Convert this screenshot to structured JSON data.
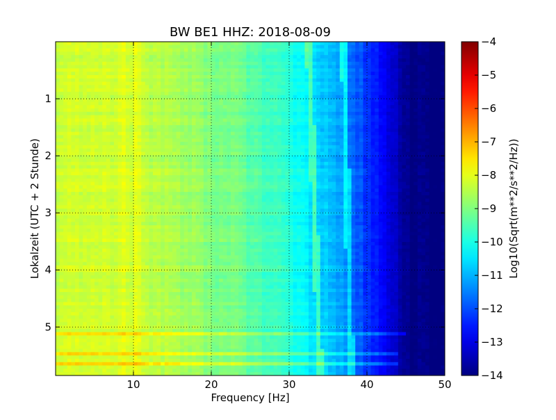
{
  "chart_data": {
    "type": "heatmap",
    "title": "BW BE1 HHZ: 2018-08-09",
    "xlabel": "Frequency [Hz]",
    "ylabel": "Lokalzeit (UTC + 2 Stunde)",
    "colorbar_label": "Log10(Sqrt(m**2/s**2/Hz))",
    "xlim": [
      0,
      50
    ],
    "ylim": [
      5.85,
      0
    ],
    "x_ticks": [
      10,
      20,
      30,
      40,
      50
    ],
    "y_ticks": [
      1,
      2,
      3,
      4,
      5
    ],
    "colorbar_range": [
      -14,
      -4
    ],
    "colorbar_ticks": [
      -4,
      -5,
      -6,
      -7,
      -8,
      -9,
      -10,
      -11,
      -12,
      -13,
      -14
    ],
    "colormap": "jet",
    "grid": true,
    "frequency_profile": [
      {
        "hz": 0,
        "value": -8.3
      },
      {
        "hz": 5,
        "value": -8.2
      },
      {
        "hz": 10,
        "value": -8.1
      },
      {
        "hz": 15,
        "value": -8.6
      },
      {
        "hz": 20,
        "value": -8.9
      },
      {
        "hz": 25,
        "value": -9.3
      },
      {
        "hz": 30,
        "value": -9.9
      },
      {
        "hz": 33,
        "value": -10.5
      },
      {
        "hz": 36,
        "value": -11.0
      },
      {
        "hz": 40,
        "value": -12.2
      },
      {
        "hz": 43,
        "value": -13.0
      },
      {
        "hz": 45,
        "value": -13.9
      },
      {
        "hz": 50,
        "value": -14.0
      }
    ],
    "annotations": [
      {
        "type": "spectral-line",
        "hz_start": 37.0,
        "hz_end": 38.0,
        "hour_start": 0,
        "hour_end": 5.85
      },
      {
        "type": "spectral-line",
        "hz_start": 32.5,
        "hz_end": 34.0,
        "hour_start": 0,
        "hour_end": 5.85
      },
      {
        "type": "horizontal-band",
        "hour": 5.12,
        "hz_end": 45
      },
      {
        "type": "horizontal-band",
        "hour": 5.47,
        "hz_end": 44
      },
      {
        "type": "horizontal-band",
        "hour": 5.65,
        "hz_end": 44
      }
    ]
  }
}
